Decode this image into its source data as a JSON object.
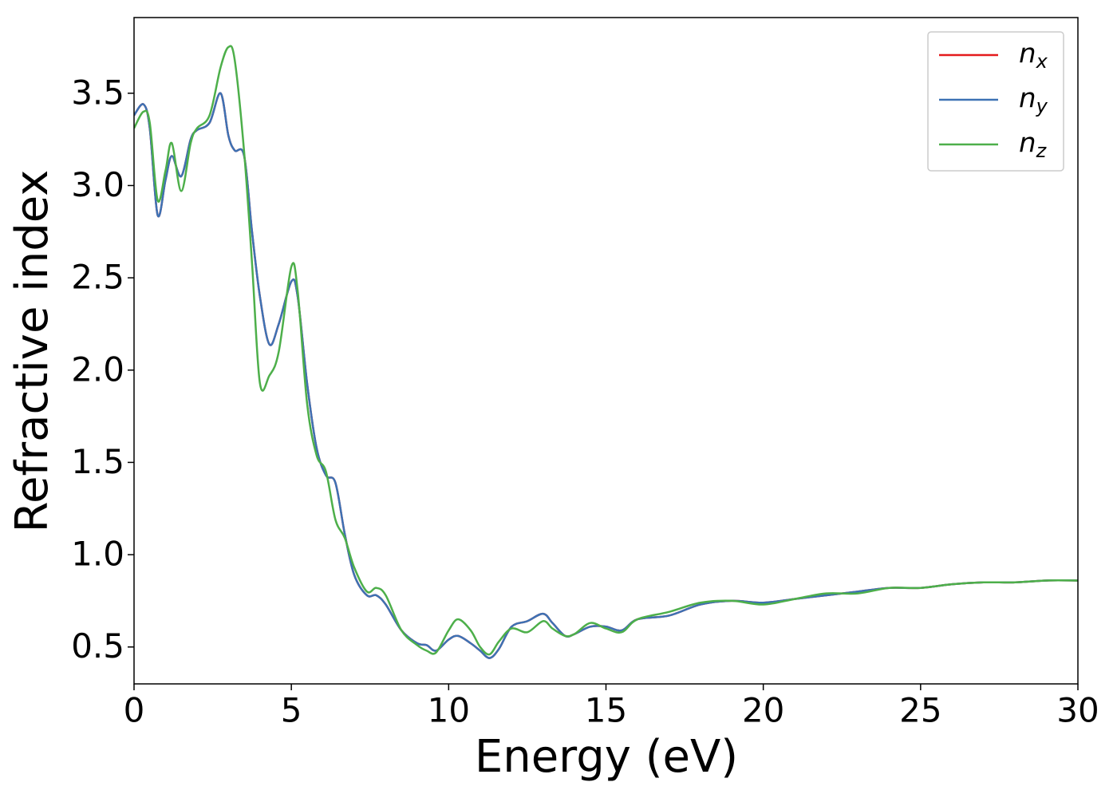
{
  "chart_data": {
    "type": "line",
    "x_label": "Energy (eV)",
    "y_label": "Refractive index",
    "x": [
      0,
      0.3,
      0.5,
      0.75,
      1.0,
      1.2,
      1.5,
      1.8,
      2.0,
      2.4,
      2.75,
      3.0,
      3.2,
      3.5,
      3.75,
      4.0,
      4.3,
      4.6,
      5.0,
      5.2,
      5.5,
      5.8,
      6.1,
      6.4,
      6.7,
      7.0,
      7.4,
      7.7,
      8.0,
      8.5,
      9.0,
      9.3,
      9.6,
      10.0,
      10.3,
      10.7,
      11.0,
      11.3,
      11.6,
      12.0,
      12.5,
      13.0,
      13.3,
      13.7,
      14.0,
      14.5,
      15.0,
      15.5,
      16.0,
      17,
      18,
      19,
      20,
      21,
      22,
      23,
      24,
      25,
      26,
      27,
      28,
      29,
      30
    ],
    "series": [
      {
        "name": "nx",
        "color": "#e41a1c",
        "values": [
          3.38,
          3.44,
          3.31,
          2.84,
          3.03,
          3.16,
          3.05,
          3.25,
          3.3,
          3.34,
          3.5,
          3.27,
          3.19,
          3.16,
          2.75,
          2.4,
          2.14,
          2.25,
          2.48,
          2.4,
          1.93,
          1.58,
          1.43,
          1.39,
          1.11,
          0.89,
          0.78,
          0.78,
          0.73,
          0.59,
          0.52,
          0.51,
          0.48,
          0.54,
          0.56,
          0.52,
          0.48,
          0.44,
          0.49,
          0.61,
          0.64,
          0.68,
          0.63,
          0.56,
          0.57,
          0.61,
          0.61,
          0.59,
          0.65,
          0.67,
          0.73,
          0.75,
          0.74,
          0.76,
          0.78,
          0.8,
          0.82,
          0.82,
          0.84,
          0.85,
          0.85,
          0.86,
          0.86
        ]
      },
      {
        "name": "ny",
        "color": "#3d72b4",
        "values": [
          3.38,
          3.44,
          3.31,
          2.84,
          3.03,
          3.16,
          3.05,
          3.25,
          3.3,
          3.34,
          3.5,
          3.27,
          3.19,
          3.16,
          2.75,
          2.4,
          2.14,
          2.25,
          2.48,
          2.4,
          1.93,
          1.58,
          1.43,
          1.39,
          1.11,
          0.89,
          0.78,
          0.78,
          0.73,
          0.59,
          0.52,
          0.51,
          0.48,
          0.54,
          0.56,
          0.52,
          0.48,
          0.44,
          0.49,
          0.61,
          0.64,
          0.68,
          0.63,
          0.56,
          0.57,
          0.61,
          0.61,
          0.59,
          0.65,
          0.67,
          0.73,
          0.75,
          0.74,
          0.76,
          0.78,
          0.8,
          0.82,
          0.82,
          0.84,
          0.85,
          0.85,
          0.86,
          0.86
        ]
      },
      {
        "name": "nz",
        "color": "#4daf4a",
        "values": [
          3.31,
          3.4,
          3.34,
          2.92,
          3.08,
          3.23,
          2.97,
          3.23,
          3.31,
          3.38,
          3.64,
          3.75,
          3.68,
          3.18,
          2.58,
          1.93,
          1.97,
          2.1,
          2.56,
          2.43,
          1.82,
          1.54,
          1.45,
          1.19,
          1.09,
          0.93,
          0.8,
          0.82,
          0.78,
          0.59,
          0.51,
          0.48,
          0.47,
          0.59,
          0.65,
          0.59,
          0.5,
          0.46,
          0.53,
          0.6,
          0.58,
          0.64,
          0.6,
          0.56,
          0.57,
          0.63,
          0.6,
          0.58,
          0.65,
          0.69,
          0.74,
          0.75,
          0.73,
          0.76,
          0.79,
          0.79,
          0.82,
          0.82,
          0.84,
          0.85,
          0.85,
          0.86,
          0.86
        ]
      }
    ],
    "xlim": [
      0,
      30
    ],
    "xticks": [
      0,
      5,
      10,
      15,
      20,
      25,
      30
    ],
    "ylim": [
      0.3,
      3.91
    ],
    "yticks": [
      0.5,
      {
        "value": 1.0,
        "label": "1.0"
      },
      1.5,
      {
        "value": 2.0,
        "label": "2.0"
      },
      2.5,
      {
        "value": 3.0,
        "label": "3.0"
      },
      3.5
    ],
    "grid": false,
    "legend": "upper right"
  }
}
